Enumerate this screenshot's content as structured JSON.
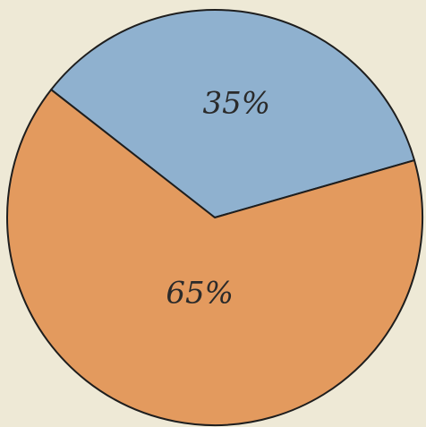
{
  "chart_data": {
    "type": "pie",
    "values": [
      35,
      65
    ],
    "value_labels": [
      "35%",
      "65%"
    ],
    "colors": [
      "#8fb1cf",
      "#e39a5e"
    ],
    "start_angle": -52
  }
}
